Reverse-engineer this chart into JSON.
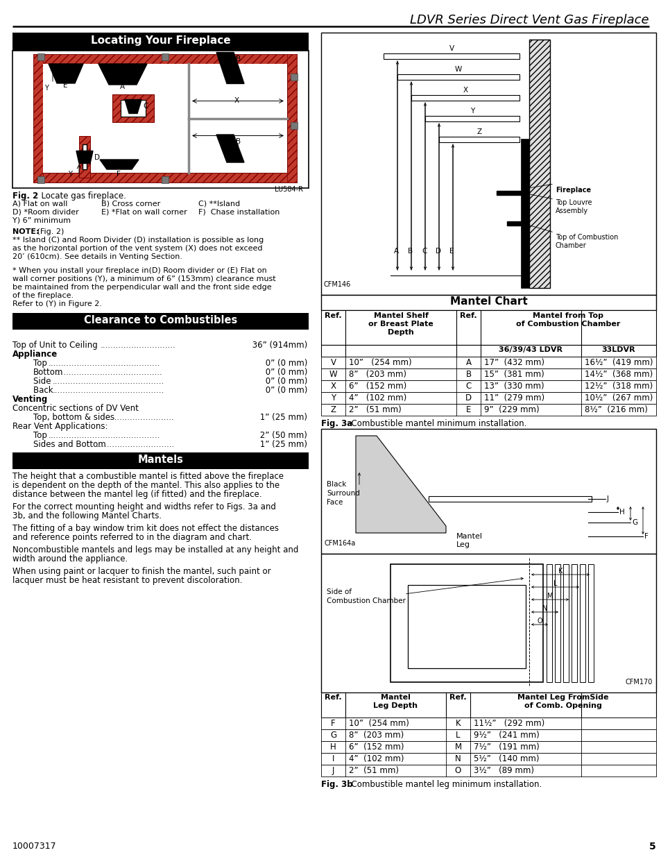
{
  "title_header": "LDVR Series Direct Vent Gas Fireplace",
  "page_number": "5",
  "doc_number": "10007317",
  "left_col": {
    "locating_title": "Locating Your Fireplace",
    "fig2_bold": "Fig. 2",
    "fig2_rest": "  Locate gas fireplace.",
    "fig2_row1_cols": [
      "A) Flat on wall",
      "B) Cross corner",
      "C) **Island"
    ],
    "fig2_row2_cols": [
      "D) *Room divider",
      "E) *Flat on wall corner",
      "F)  Chase installation"
    ],
    "fig2_row3": "Y) 6” minimum",
    "note_bold": "NOTE:",
    "note_rest": " (Fig. 2)",
    "note_text1": "** Island (C) and Room Divider (D) installation is possible as long as the horizontal portion of the vent system (X) does not exceed 20’ (610cm).  See details in Venting Section.",
    "note_text2": "*  When you install your fireplace in(D) Room divider or (E) Flat on wall corner positions (Y), a minimum of 6” (153mm) clearance must be maintained from the perpendicular wall and the front side edge of the fireplace.",
    "note_text3": "Refer to (Y) in Figure 2.",
    "clearance_title": "Clearance to Combustibles",
    "clearance_lines": [
      [
        "Top of Unit to Ceiling ",
        ".............................",
        " 36” (914mm)",
        false
      ],
      [
        "Appliance",
        "",
        "",
        true
      ],
      [
        "Top ",
        "...........................................",
        " 0” (0 mm)",
        false,
        true
      ],
      [
        "Bottom",
        ".........................................",
        " 0” (0 mm)",
        false,
        true
      ],
      [
        "Side ",
        "...........................................",
        " 0” (0 mm)",
        false,
        true
      ],
      [
        "Back ",
        "...........................................",
        " 0” (0 mm)",
        false,
        true
      ],
      [
        "Venting",
        "",
        "",
        true
      ],
      [
        "Concentric sections of DV Vent",
        "",
        "",
        false
      ],
      [
        "Top, bottom & sides ",
        ".........................",
        " 1” (25 mm)",
        false,
        true
      ],
      [
        "Rear Vent Applications:",
        "",
        "",
        false
      ],
      [
        "Top ",
        "...........................................",
        " 2” (50 mm)",
        false,
        true
      ],
      [
        "Sides and Bottom",
        "...............................",
        " 1” (25 mm)",
        false,
        true
      ]
    ],
    "mantels_title": "Mantels",
    "mantels_paragraphs": [
      "The height that a combustible mantel is fitted above the fireplace is dependent on the depth of the mantel. This also applies to the distance between the mantel leg (if fitted) and the fireplace.",
      "For the correct mounting height and widths refer to Figs. 3a and  3b, and the following Mantel Charts.",
      "The fitting of a bay window trim kit does not effect the distances and reference points referred to in the diagram and chart.",
      "Noncombustible mantels and legs may be installed at any height and width around the appliance.",
      "When using paint or lacquer to finish the mantel, such paint or lacquer must be heat resistant to prevent discoloration."
    ]
  },
  "right_col": {
    "mantel_chart_title": "Mantel Chart",
    "mantel_rows": [
      [
        "V",
        "10”   (254 mm)",
        "A",
        "17”  (432 mm)",
        "16½”  (419 mm)"
      ],
      [
        "W",
        "8”   (203 mm)",
        "B",
        "15”  (381 mm)",
        "14½”  (368 mm)"
      ],
      [
        "X",
        "6”   (152 mm)",
        "C",
        "13”  (330 mm)",
        "12½”  (318 mm)"
      ],
      [
        "Y",
        "4”   (102 mm)",
        "D",
        "11”  (279 mm)",
        "10½”  (267 mm)"
      ],
      [
        "Z",
        "2”   (51 mm)",
        "E",
        "9”  (229 mm)",
        "8½”  (216 mm)"
      ]
    ],
    "fig3a_caption_bold": "Fig. 3a",
    "fig3a_caption_rest": "  Combustible mantel minimum installation.",
    "mantel_leg_rows": [
      [
        "F",
        "10”  (254 mm)",
        "K",
        "11½”   (292 mm)"
      ],
      [
        "G",
        "8”  (203 mm)",
        "L",
        "9½”   (241 mm)"
      ],
      [
        "H",
        "6”  (152 mm)",
        "M",
        "7½”   (191 mm)"
      ],
      [
        "I",
        "4”  (102 mm)",
        "N",
        "5½”   (140 mm)"
      ],
      [
        "J",
        "2”  (51 mm)",
        "O",
        "3½”   (89 mm)"
      ]
    ],
    "fig3b_caption_bold": "Fig. 3b",
    "fig3b_caption_rest": "  Combustible mantel leg minimum installation."
  },
  "colors": {
    "black": "#000000",
    "white": "#ffffff",
    "red_fill": "#c0392b",
    "red_hatch": "#c0392b",
    "gray_wall": "#888888",
    "light_gray": "#d0d0d0"
  }
}
